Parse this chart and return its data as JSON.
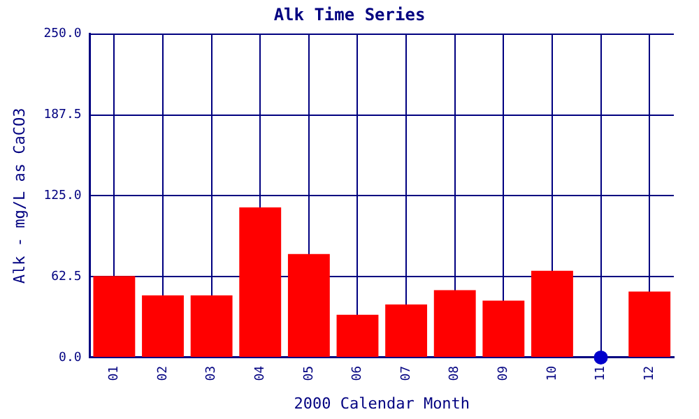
{
  "chart_data": {
    "type": "bar",
    "title": "Alk Time Series",
    "xlabel": "2000 Calendar Month",
    "ylabel": "Alk - mg/L as CaCO3",
    "categories": [
      "01",
      "02",
      "03",
      "04",
      "05",
      "06",
      "07",
      "08",
      "09",
      "10",
      "11",
      "12"
    ],
    "series": [
      {
        "color": "#ff0000",
        "values": [
          63,
          48,
          48,
          116,
          80,
          33,
          41,
          52,
          44,
          67,
          null,
          51
        ]
      },
      {
        "type": "scatter",
        "color": "#0000cc",
        "x": [
          "11"
        ],
        "values": [
          0
        ]
      }
    ],
    "ylim": [
      0,
      250
    ],
    "yticks": [
      {
        "value": 0,
        "label": "0.0"
      },
      {
        "value": 62.5,
        "label": "62.5"
      },
      {
        "value": 125,
        "label": "125.0"
      },
      {
        "value": 187.5,
        "label": "187.5"
      },
      {
        "value": 250,
        "label": "250.0"
      }
    ],
    "grid": true,
    "legend": false,
    "marker": "circle"
  }
}
